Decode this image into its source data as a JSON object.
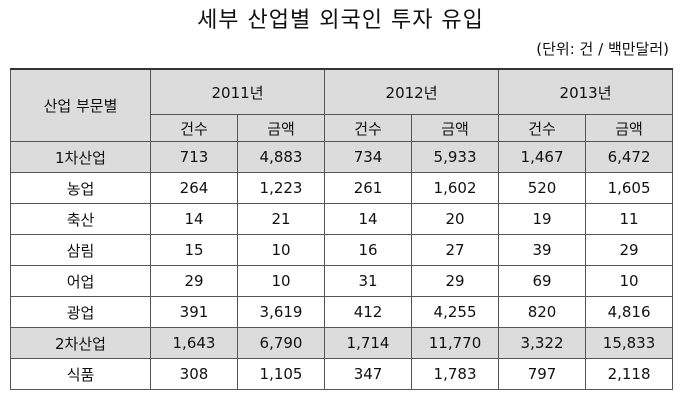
{
  "title": "세부 산업별 외국인 투자 유입",
  "unit": "(단위: 건 / 백만달러)",
  "table": {
    "category_header": "산업 부문별",
    "years": [
      "2011년",
      "2012년",
      "2013년"
    ],
    "subheaders": [
      "건수",
      "금액",
      "건수",
      "금액",
      "건수",
      "금액"
    ],
    "rows": [
      {
        "label": "1차산업",
        "values": [
          "713",
          "4,883",
          "734",
          "5,933",
          "1,467",
          "6,472"
        ],
        "subtotal": true
      },
      {
        "label": "농업",
        "values": [
          "264",
          "1,223",
          "261",
          "1,602",
          "520",
          "1,605"
        ],
        "subtotal": false
      },
      {
        "label": "축산",
        "values": [
          "14",
          "21",
          "14",
          "20",
          "19",
          "11"
        ],
        "subtotal": false
      },
      {
        "label": "삼림",
        "values": [
          "15",
          "10",
          "16",
          "27",
          "39",
          "29"
        ],
        "subtotal": false
      },
      {
        "label": "어업",
        "values": [
          "29",
          "10",
          "31",
          "29",
          "69",
          "10"
        ],
        "subtotal": false
      },
      {
        "label": "광업",
        "values": [
          "391",
          "3,619",
          "412",
          "4,255",
          "820",
          "4,816"
        ],
        "subtotal": false
      },
      {
        "label": "2차산업",
        "values": [
          "1,643",
          "6,790",
          "1,714",
          "11,770",
          "3,322",
          "15,833"
        ],
        "subtotal": true
      },
      {
        "label": "식품",
        "values": [
          "308",
          "1,105",
          "347",
          "1,783",
          "797",
          "2,118"
        ],
        "subtotal": false
      }
    ]
  }
}
